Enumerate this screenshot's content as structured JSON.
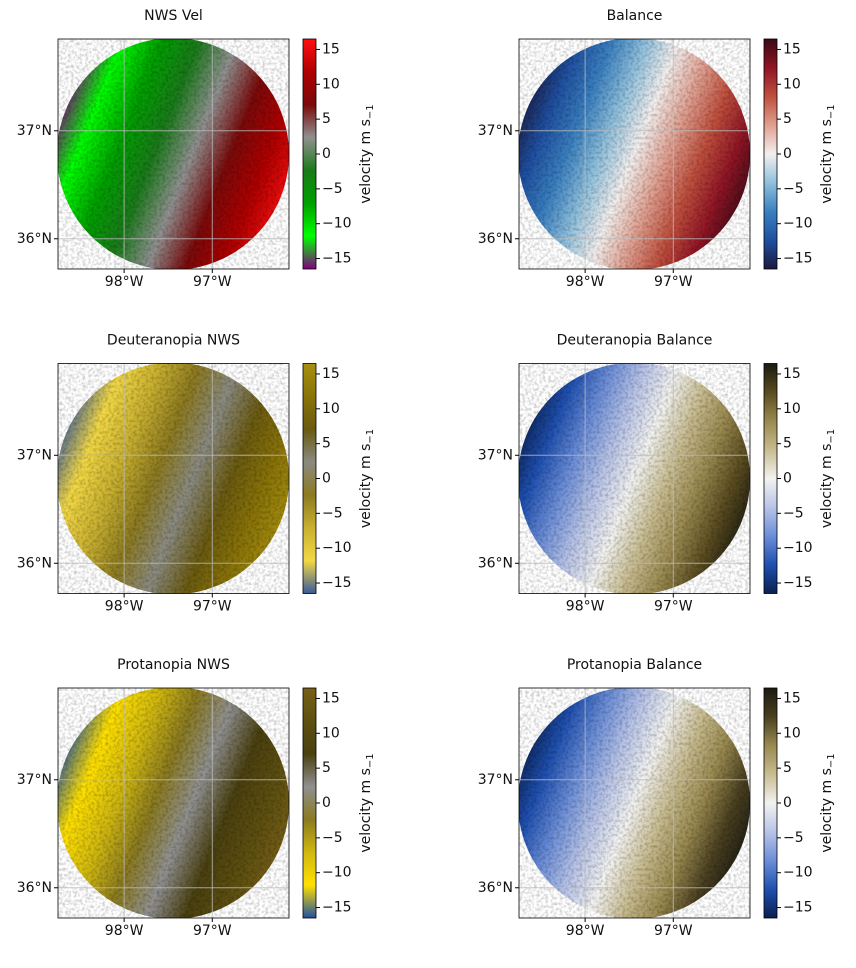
{
  "chart_data": [
    {
      "type": "radar",
      "title": "NWS Vel",
      "colormap": [
        "#800080",
        "#00ff00",
        "#00a000",
        "#1a7a1a",
        "#909090",
        "#7a0a0a",
        "#b00000",
        "#ff1010"
      ],
      "xlim": [
        -98.75,
        -96.13
      ],
      "ylim": [
        35.72,
        37.85
      ],
      "xticks": [
        {
          "value": -98,
          "label": "98°W"
        },
        {
          "value": -97,
          "label": "97°W"
        }
      ],
      "yticks": [
        {
          "value": 37,
          "label": "37°N"
        },
        {
          "value": 36,
          "label": "36°N"
        }
      ],
      "clim": [
        -16.5,
        16.5
      ],
      "cbar_ticks": [
        {
          "value": -15,
          "label": "−15"
        },
        {
          "value": -10,
          "label": "−10"
        },
        {
          "value": -5,
          "label": "−5"
        },
        0,
        5,
        10,
        15
      ],
      "cbar_label": "velocity m s",
      "cbar_label_sub": "−1",
      "grid": true
    },
    {
      "type": "radar",
      "title": "Balance",
      "colormap": [
        "#1a1a40",
        "#1f4fa0",
        "#3a80c0",
        "#8fc0dd",
        "#f3efee",
        "#e0a090",
        "#c0503e",
        "#901525",
        "#3a0a15"
      ],
      "xlim": [
        -98.75,
        -96.13
      ],
      "ylim": [
        35.72,
        37.85
      ],
      "xticks": [
        {
          "value": -98,
          "label": "98°W"
        },
        {
          "value": -97,
          "label": "97°W"
        }
      ],
      "yticks": [
        {
          "value": 37,
          "label": "37°N"
        },
        {
          "value": 36,
          "label": "36°N"
        }
      ],
      "clim": [
        -16.5,
        16.5
      ],
      "cbar_ticks": [
        {
          "value": -15,
          "label": "−15"
        },
        {
          "value": -10,
          "label": "−10"
        },
        {
          "value": -5,
          "label": "−5"
        },
        0,
        5,
        10,
        15
      ],
      "cbar_label": "velocity m s",
      "cbar_label_sub": "−1",
      "grid": true
    },
    {
      "type": "radar",
      "title": "Deuteranopia NWS",
      "colormap": [
        "#3a5a9a",
        "#f2d845",
        "#c8b030",
        "#8c7a20",
        "#8a8a80",
        "#6a5a10",
        "#8a7408",
        "#a89010"
      ],
      "xlim": [
        -98.75,
        -96.13
      ],
      "ylim": [
        35.72,
        37.85
      ],
      "xticks": [
        {
          "value": -98,
          "label": "98°W"
        },
        {
          "value": -97,
          "label": "97°W"
        }
      ],
      "yticks": [
        {
          "value": 37,
          "label": "37°N"
        },
        {
          "value": 36,
          "label": "36°N"
        }
      ],
      "clim": [
        -16.5,
        16.5
      ],
      "cbar_ticks": [
        {
          "value": -15,
          "label": "−15"
        },
        {
          "value": -10,
          "label": "−10"
        },
        {
          "value": -5,
          "label": "−5"
        },
        0,
        5,
        10,
        15
      ],
      "cbar_label": "velocity m s",
      "cbar_label_sub": "−1",
      "grid": true
    },
    {
      "type": "radar",
      "title": "Deuteranopia Balance",
      "colormap": [
        "#0a2050",
        "#1f50b0",
        "#6c8ed8",
        "#b8c4e8",
        "#f2f2f0",
        "#c8bc90",
        "#9a8a50",
        "#5a4c20",
        "#1a1a10"
      ],
      "xlim": [
        -98.75,
        -96.13
      ],
      "ylim": [
        35.72,
        37.85
      ],
      "xticks": [
        {
          "value": -98,
          "label": "98°W"
        },
        {
          "value": -97,
          "label": "97°W"
        }
      ],
      "yticks": [
        {
          "value": 37,
          "label": "37°N"
        },
        {
          "value": 36,
          "label": "36°N"
        }
      ],
      "clim": [
        -16.5,
        16.5
      ],
      "cbar_ticks": [
        {
          "value": -15,
          "label": "−15"
        },
        {
          "value": -10,
          "label": "−10"
        },
        {
          "value": -5,
          "label": "−5"
        },
        0,
        5,
        10,
        15
      ],
      "cbar_label": "velocity m s",
      "cbar_label_sub": "−1",
      "grid": true
    },
    {
      "type": "radar",
      "title": "Protanopia NWS",
      "colormap": [
        "#2050a0",
        "#ffe000",
        "#d0b810",
        "#8a7a20",
        "#909090",
        "#4a4010",
        "#5e5010",
        "#786018"
      ],
      "xlim": [
        -98.75,
        -96.13
      ],
      "ylim": [
        35.72,
        37.85
      ],
      "xticks": [
        {
          "value": -98,
          "label": "98°W"
        },
        {
          "value": -97,
          "label": "97°W"
        }
      ],
      "yticks": [
        {
          "value": 37,
          "label": "37°N"
        },
        {
          "value": 36,
          "label": "36°N"
        }
      ],
      "clim": [
        -16.5,
        16.5
      ],
      "cbar_ticks": [
        {
          "value": -15,
          "label": "−15"
        },
        {
          "value": -10,
          "label": "−10"
        },
        {
          "value": -5,
          "label": "−5"
        },
        0,
        5,
        10,
        15
      ],
      "cbar_label": "velocity m s",
      "cbar_label_sub": "−1",
      "grid": true
    },
    {
      "type": "radar",
      "title": "Protanopia Balance",
      "colormap": [
        "#0a2050",
        "#1f50b0",
        "#6c8ed8",
        "#b8c4e8",
        "#f2f2f0",
        "#c8bc90",
        "#9a8a50",
        "#4a4020",
        "#1a1a10"
      ],
      "xlim": [
        -98.75,
        -96.13
      ],
      "ylim": [
        35.72,
        37.85
      ],
      "xticks": [
        {
          "value": -98,
          "label": "98°W"
        },
        {
          "value": -97,
          "label": "97°W"
        }
      ],
      "yticks": [
        {
          "value": 37,
          "label": "37°N"
        },
        {
          "value": 36,
          "label": "36°N"
        }
      ],
      "clim": [
        -16.5,
        16.5
      ],
      "cbar_ticks": [
        {
          "value": -15,
          "label": "−15"
        },
        {
          "value": -10,
          "label": "−10"
        },
        {
          "value": -5,
          "label": "−5"
        },
        0,
        5,
        10,
        15
      ],
      "cbar_label": "velocity m s",
      "cbar_label_sub": "−1",
      "grid": true
    }
  ]
}
